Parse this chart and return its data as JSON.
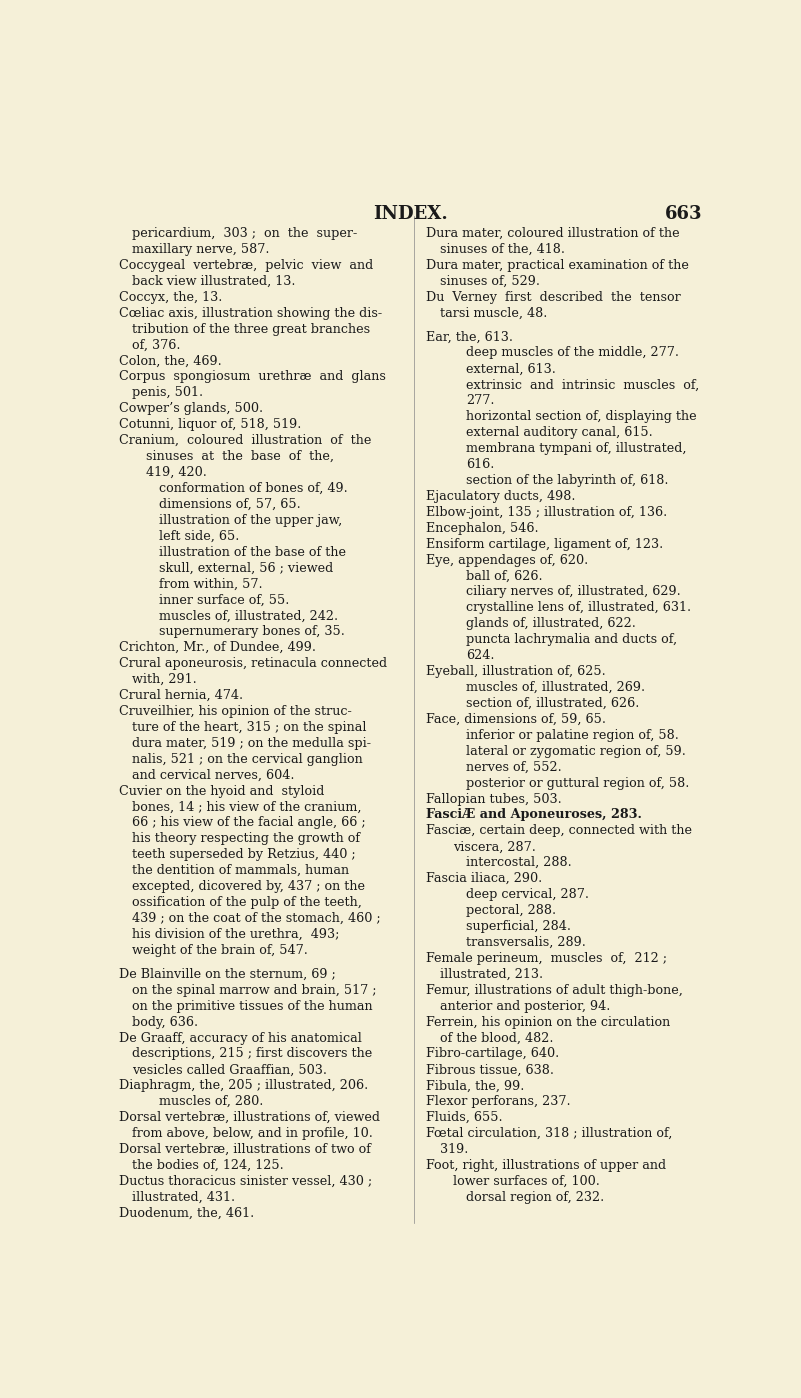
{
  "bg_color": "#f5f0d8",
  "text_color": "#1a1a1a",
  "title": "INDEX.",
  "page_num": "663",
  "title_fontsize": 13,
  "body_fontsize": 9.2,
  "left_column": [
    {
      "indent": 1,
      "text": "pericardium,  303 ;  on  the  super-"
    },
    {
      "indent": 1,
      "text": "maxillary nerve, 587."
    },
    {
      "indent": 0,
      "text": "Coccygeal  vertebræ,  pelvic  view  and"
    },
    {
      "indent": 1,
      "text": "back view illustrated, 13."
    },
    {
      "indent": 0,
      "text": "Coccyx, the, 13."
    },
    {
      "indent": 0,
      "text": "Cœliac axis, illustration showing the dis-"
    },
    {
      "indent": 1,
      "text": "tribution of the three great branches"
    },
    {
      "indent": 1,
      "text": "of, 376."
    },
    {
      "indent": 0,
      "text": "Colon, the, 469."
    },
    {
      "indent": 0,
      "text": "Corpus  spongiosum  urethræ  and  glans"
    },
    {
      "indent": 1,
      "text": "penis, 501."
    },
    {
      "indent": 0,
      "text": "Cowper’s glands, 500."
    },
    {
      "indent": 0,
      "text": "Cotunni, liquor of, 518, 519."
    },
    {
      "indent": 0,
      "text": "Cranium,  coloured  illustration  of  the"
    },
    {
      "indent": 2,
      "text": "sinuses  at  the  base  of  the,"
    },
    {
      "indent": 2,
      "text": "419, 420."
    },
    {
      "indent": 3,
      "text": "conformation of bones of, 49."
    },
    {
      "indent": 3,
      "text": "dimensions of, 57, 65."
    },
    {
      "indent": 3,
      "text": "illustration of the upper jaw,"
    },
    {
      "indent": 3,
      "text": "left side, 65."
    },
    {
      "indent": 3,
      "text": "illustration of the base of the"
    },
    {
      "indent": 3,
      "text": "skull, external, 56 ; viewed"
    },
    {
      "indent": 3,
      "text": "from within, 57."
    },
    {
      "indent": 3,
      "text": "inner surface of, 55."
    },
    {
      "indent": 3,
      "text": "muscles of, illustrated, 242."
    },
    {
      "indent": 3,
      "text": "supernumerary bones of, 35."
    },
    {
      "indent": 0,
      "text": "Crichton, Mr., of Dundee, 499."
    },
    {
      "indent": 0,
      "text": "Crural aponeurosis, retinacula connected"
    },
    {
      "indent": 1,
      "text": "with, 291."
    },
    {
      "indent": 0,
      "text": "Crural hernia, 474."
    },
    {
      "indent": 0,
      "text": "Cruveilhier, his opinion of the struc-"
    },
    {
      "indent": 1,
      "text": "ture of the heart, 315 ; on the spinal"
    },
    {
      "indent": 1,
      "text": "dura mater, 519 ; on the medulla spi-"
    },
    {
      "indent": 1,
      "text": "nalis, 521 ; on the cervical ganglion"
    },
    {
      "indent": 1,
      "text": "and cervical nerves, 604."
    },
    {
      "indent": 0,
      "text": "Cuvier on the hyoid and  styloid"
    },
    {
      "indent": 1,
      "text": "bones, 14 ; his view of the cranium,"
    },
    {
      "indent": 1,
      "text": "66 ; his view of the facial angle, 66 ;"
    },
    {
      "indent": 1,
      "text": "his theory respecting the growth of"
    },
    {
      "indent": 1,
      "text": "teeth superseded by Retzius, 440 ;"
    },
    {
      "indent": 1,
      "text": "the dentition of mammals, human"
    },
    {
      "indent": 1,
      "text": "excepted, dicovered by, 437 ; on the"
    },
    {
      "indent": 1,
      "text": "ossification of the pulp of the teeth,"
    },
    {
      "indent": 1,
      "text": "439 ; on the coat of the stomach, 460 ;"
    },
    {
      "indent": 1,
      "text": "his division of the urethra,  493;"
    },
    {
      "indent": 1,
      "text": "weight of the brain of, 547."
    },
    {
      "indent": -1,
      "text": ""
    },
    {
      "indent": 0,
      "text": "De Blainville on the sternum, 69 ;"
    },
    {
      "indent": 1,
      "text": "on the spinal marrow and brain, 517 ;"
    },
    {
      "indent": 1,
      "text": "on the primitive tissues of the human"
    },
    {
      "indent": 1,
      "text": "body, 636."
    },
    {
      "indent": 0,
      "text": "De Graaff, accuracy of his anatomical"
    },
    {
      "indent": 1,
      "text": "descriptions, 215 ; first discovers the"
    },
    {
      "indent": 1,
      "text": "vesicles called Graaffian, 503."
    },
    {
      "indent": 0,
      "text": "Diaphragm, the, 205 ; illustrated, 206."
    },
    {
      "indent": 3,
      "text": "muscles of, 280."
    },
    {
      "indent": 0,
      "text": "Dorsal vertebræ, illustrations of, viewed"
    },
    {
      "indent": 1,
      "text": "from above, below, and in profile, 10."
    },
    {
      "indent": 0,
      "text": "Dorsal vertebræ, illustrations of two of"
    },
    {
      "indent": 1,
      "text": "the bodies of, 124, 125."
    },
    {
      "indent": 0,
      "text": "Ductus thoracicus sinister vessel, 430 ;"
    },
    {
      "indent": 1,
      "text": "illustrated, 431."
    },
    {
      "indent": 0,
      "text": "Duodenum, the, 461."
    }
  ],
  "right_column": [
    {
      "indent": 0,
      "text": "Dura mater, coloured illustration of the"
    },
    {
      "indent": 1,
      "text": "sinuses of the, 418."
    },
    {
      "indent": 0,
      "text": "Dura mater, practical examination of the"
    },
    {
      "indent": 1,
      "text": "sinuses of, 529."
    },
    {
      "indent": 0,
      "text": "Du  Verney  first  described  the  tensor"
    },
    {
      "indent": 1,
      "text": "tarsi muscle, 48."
    },
    {
      "indent": -1,
      "text": ""
    },
    {
      "indent": 0,
      "text": "Ear, the, 613."
    },
    {
      "indent": 3,
      "text": "deep muscles of the middle, 277."
    },
    {
      "indent": 3,
      "text": "external, 613."
    },
    {
      "indent": 3,
      "text": "extrinsic  and  intrinsic  muscles  of,"
    },
    {
      "indent": 3,
      "text": "277."
    },
    {
      "indent": 3,
      "text": "horizontal section of, displaying the"
    },
    {
      "indent": 3,
      "text": "external auditory canal, 615."
    },
    {
      "indent": 3,
      "text": "membrana tympani of, illustrated,"
    },
    {
      "indent": 3,
      "text": "616."
    },
    {
      "indent": 3,
      "text": "section of the labyrinth of, 618."
    },
    {
      "indent": 0,
      "text": "Ejaculatory ducts, 498."
    },
    {
      "indent": 0,
      "text": "Elbow-joint, 135 ; illustration of, 136."
    },
    {
      "indent": 0,
      "text": "Encephalon, 546."
    },
    {
      "indent": 0,
      "text": "Ensiform cartilage, ligament of, 123."
    },
    {
      "indent": 0,
      "text": "Eye, appendages of, 620."
    },
    {
      "indent": 3,
      "text": "ball of, 626."
    },
    {
      "indent": 3,
      "text": "ciliary nerves of, illustrated, 629."
    },
    {
      "indent": 3,
      "text": "crystalline lens of, illustrated, 631."
    },
    {
      "indent": 3,
      "text": "glands of, illustrated, 622."
    },
    {
      "indent": 3,
      "text": "puncta lachrymalia and ducts of,"
    },
    {
      "indent": 3,
      "text": "624."
    },
    {
      "indent": 0,
      "text": "Eyeball, illustration of, 625."
    },
    {
      "indent": 3,
      "text": "muscles of, illustrated, 269."
    },
    {
      "indent": 3,
      "text": "section of, illustrated, 626."
    },
    {
      "indent": 0,
      "text": "Face, dimensions of, 59, 65."
    },
    {
      "indent": 3,
      "text": "inferior or palatine region of, 58."
    },
    {
      "indent": 3,
      "text": "lateral or zygomatic region of, 59."
    },
    {
      "indent": 3,
      "text": "nerves of, 552."
    },
    {
      "indent": 3,
      "text": "posterior or guttural region of, 58."
    },
    {
      "indent": 0,
      "text": "Fallopian tubes, 503."
    },
    {
      "indent": 0,
      "text": "bold:FasciÆ and Aponeuroses, 283."
    },
    {
      "indent": 0,
      "text": "Fasciæ, certain deep, connected with the"
    },
    {
      "indent": 2,
      "text": "viscera, 287."
    },
    {
      "indent": 3,
      "text": "intercostal, 288."
    },
    {
      "indent": 0,
      "text": "Fascia iliaca, 290."
    },
    {
      "indent": 3,
      "text": "deep cervical, 287."
    },
    {
      "indent": 3,
      "text": "pectoral, 288."
    },
    {
      "indent": 3,
      "text": "superficial, 284."
    },
    {
      "indent": 3,
      "text": "transversalis, 289."
    },
    {
      "indent": 0,
      "text": "Female perineum,  muscles  of,  212 ;"
    },
    {
      "indent": 1,
      "text": "illustrated, 213."
    },
    {
      "indent": 0,
      "text": "Femur, illustrations of adult thigh-bone,"
    },
    {
      "indent": 1,
      "text": "anterior and posterior, 94."
    },
    {
      "indent": 0,
      "text": "Ferrein, his opinion on the circulation"
    },
    {
      "indent": 1,
      "text": "of the blood, 482."
    },
    {
      "indent": 0,
      "text": "Fibro-cartilage, 640."
    },
    {
      "indent": 0,
      "text": "Fibrous tissue, 638."
    },
    {
      "indent": 0,
      "text": "Fibula, the, 99."
    },
    {
      "indent": 0,
      "text": "Flexor perforans, 237."
    },
    {
      "indent": 0,
      "text": "Fluids, 655."
    },
    {
      "indent": 0,
      "text": "Fœtal circulation, 318 ; illustration of,"
    },
    {
      "indent": 1,
      "text": "319."
    },
    {
      "indent": 0,
      "text": "Foot, right, illustrations of upper and"
    },
    {
      "indent": 2,
      "text": "lower surfaces of, 100."
    },
    {
      "indent": 3,
      "text": "dorsal region of, 232."
    }
  ],
  "indent_pts": [
    0.0,
    0.022,
    0.044,
    0.065
  ]
}
